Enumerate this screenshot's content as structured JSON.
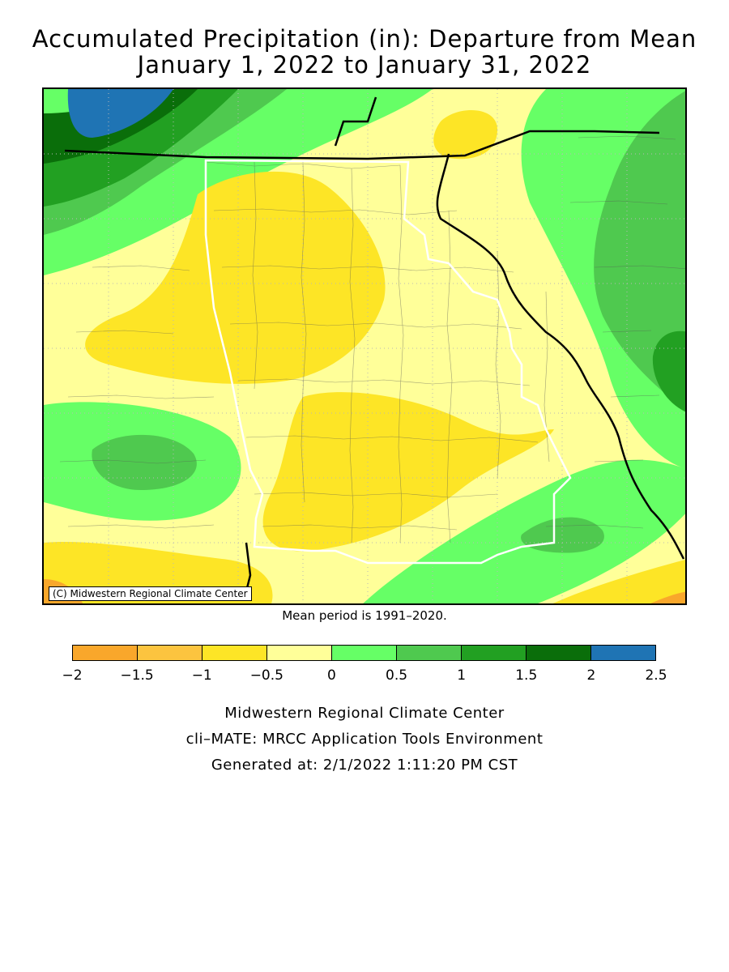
{
  "title_line1": "Accumulated Precipitation (in): Departure from Mean",
  "title_line2": "January 1, 2022 to January 31, 2022",
  "copyright": "(C) Midwestern Regional Climate Center",
  "mean_note": "Mean period is 1991–2020.",
  "legend": {
    "colors": [
      "#f9a72b",
      "#fcc43f",
      "#fde526",
      "#ffff99",
      "#66ff66",
      "#4fc94f",
      "#22a022",
      "#0a6e0a",
      "#1f74b4"
    ],
    "ticks": [
      "−2",
      "−1.5",
      "−1",
      "−0.5",
      "0",
      "0.5",
      "1",
      "1.5",
      "2",
      "2.5"
    ]
  },
  "footer": {
    "line1": "Midwestern Regional Climate Center",
    "line2": "cli–MATE: MRCC Application Tools Environment",
    "line3": "Generated at: 2/1/2022 1:11:20 PM CST"
  },
  "map": {
    "colors": {
      "band_lt05_neg": "#fde526",
      "band_0_neg05": "#ffff99",
      "band_0_05": "#66ff66",
      "band_05_1": "#4fc94f",
      "band_1_15": "#22a022",
      "band_15_2": "#0a6e0a",
      "band_2_25": "#1f74b4",
      "band_neg15_neg2": "#f9a72b"
    }
  }
}
